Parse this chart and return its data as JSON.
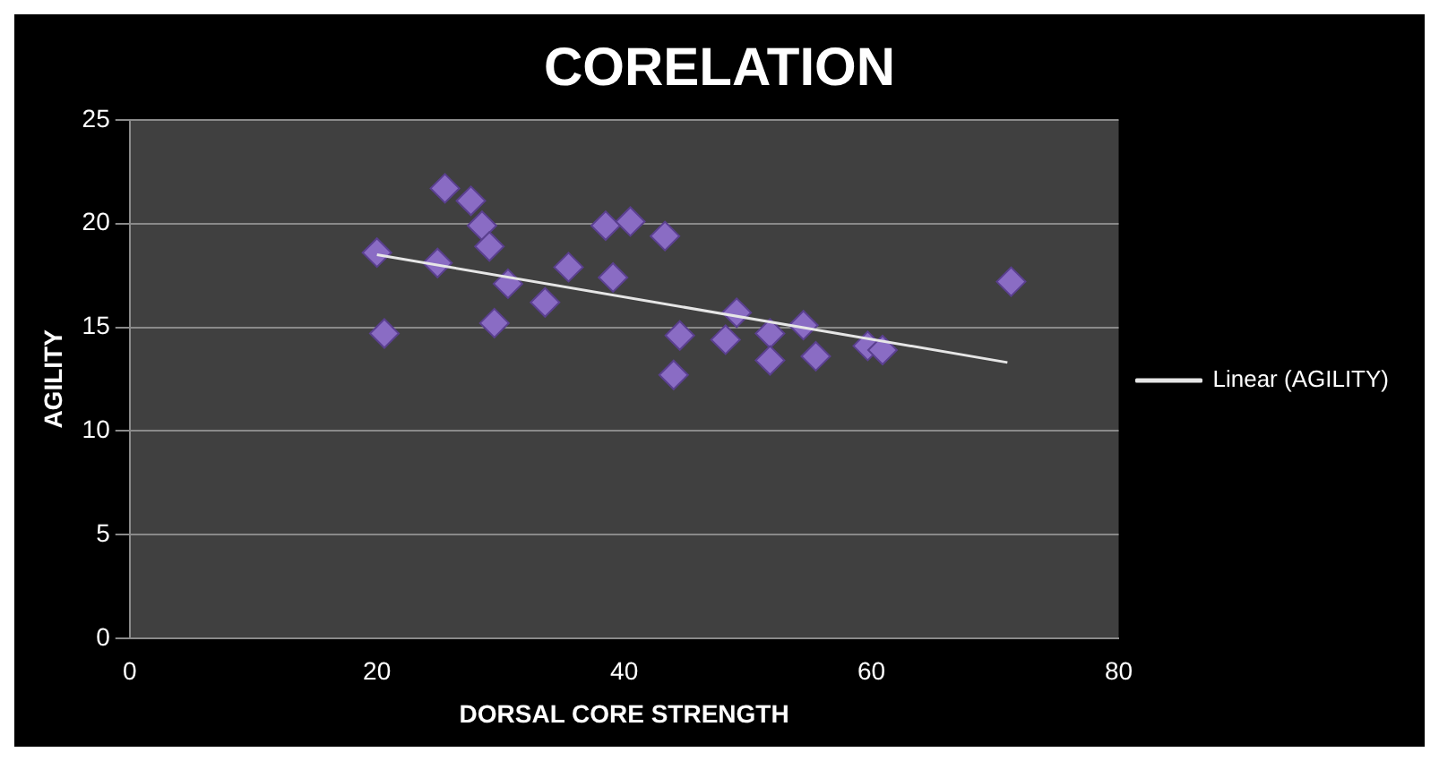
{
  "chart_data": {
    "type": "scatter",
    "title": "CORELATION",
    "xlabel": "DORSAL CORE STRENGTH",
    "ylabel": "AGILITY",
    "xlim": [
      0,
      80
    ],
    "xticks": [
      0,
      20,
      40,
      60,
      80
    ],
    "ylim": [
      0,
      25
    ],
    "yticks": [
      0,
      5,
      10,
      15,
      20,
      25
    ],
    "grid": "y",
    "legend": "right",
    "marker": "diamond",
    "series": [
      {
        "color": "#8a6cc4",
        "x": [
          20,
          20.6,
          25.5,
          27.6,
          28.5,
          24.9,
          29.1,
          30.6,
          29.5,
          33.6,
          35.5,
          39.1,
          38.5,
          40.5,
          43.3,
          44.5,
          44,
          49.1,
          48.2,
          51.8,
          51.8,
          54.5,
          55.5,
          59.7,
          60.9,
          71.3
        ],
        "values": [
          18.6,
          14.7,
          21.7,
          21.1,
          19.9,
          18.1,
          18.9,
          17.1,
          15.2,
          16.2,
          17.9,
          17.4,
          19.9,
          20.1,
          19.4,
          14.6,
          12.7,
          15.7,
          14.4,
          14.7,
          13.4,
          15.1,
          13.6,
          14.1,
          13.9,
          17.2
        ]
      },
      {
        "type": "line",
        "name": "Linear (AGILITY)",
        "color": "#e6e6e6",
        "marker": "none",
        "line_style": "solid",
        "x": [
          20,
          71
        ],
        "values": [
          18.5,
          13.3
        ]
      }
    ]
  }
}
